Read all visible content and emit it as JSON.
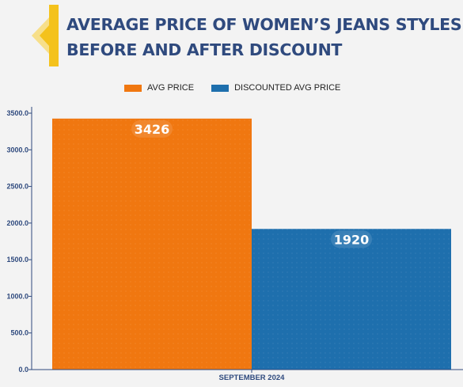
{
  "header": {
    "title_line1": "AVERAGE PRICE OF WOMEN’S JEANS STYLES",
    "title_line2": "BEFORE AND AFTER DISCOUNT"
  },
  "legend": [
    {
      "label": "AVG PRICE",
      "color": "#f07710"
    },
    {
      "label": "DISCOUNTED AVG PRICE",
      "color": "#1e6fad"
    }
  ],
  "colors": {
    "title": "#2f4a7e",
    "axis": "#2f4a7e",
    "accent_yellow": "#f4c21c"
  },
  "chart_data": {
    "type": "bar",
    "categories": [
      "SEPTEMBER 2024"
    ],
    "series": [
      {
        "name": "AVG PRICE",
        "values": [
          3426
        ],
        "color": "#f07710"
      },
      {
        "name": "DISCOUNTED AVG PRICE",
        "values": [
          1920
        ],
        "color": "#1e6fad"
      }
    ],
    "data_labels": [
      "3426",
      "1920"
    ],
    "yticks": [
      "0.0",
      "500.0",
      "1000.0",
      "1500.0",
      "2000.0",
      "2500.0",
      "3000.0",
      "3500.0"
    ],
    "ylim": [
      0,
      3500
    ],
    "xlabel": "SEPTEMBER 2024",
    "ylabel": "",
    "grid": false,
    "legend_position": "top"
  }
}
